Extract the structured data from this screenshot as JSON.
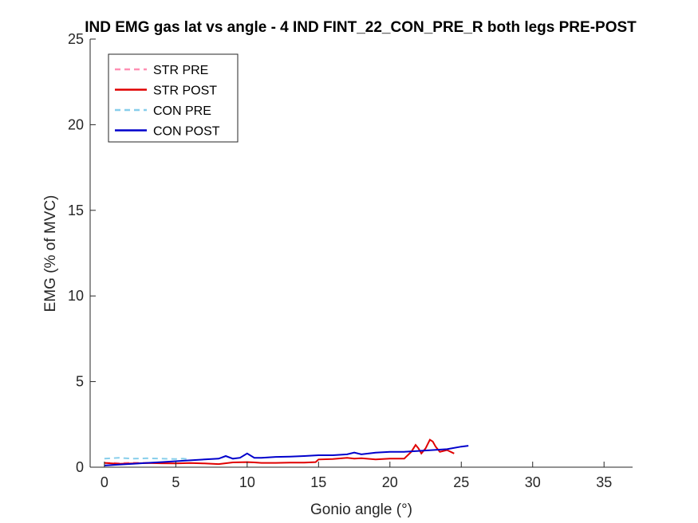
{
  "chart_data": {
    "type": "line",
    "title": "IND EMG gas lat vs angle - 4 IND FINT_22_CON_PRE_R both legs PRE-POST",
    "xlabel": "Gonio angle (°)",
    "ylabel": "EMG (% of MVC)",
    "xlim": [
      -1,
      37
    ],
    "ylim": [
      0,
      25
    ],
    "xticks": [
      0,
      5,
      10,
      15,
      20,
      25,
      30,
      35
    ],
    "yticks": [
      0,
      5,
      10,
      15,
      20,
      25
    ],
    "grid": false,
    "legend_position": "top-left",
    "series": [
      {
        "name": "STR PRE",
        "color": "#ff8fb3",
        "dash": true,
        "x": [
          0,
          0.5,
          1,
          2,
          3,
          3.5
        ],
        "y": [
          0.25,
          0.26,
          0.24,
          0.27,
          0.25,
          0.26
        ]
      },
      {
        "name": "STR POST",
        "color": "#e00000",
        "dash": false,
        "x": [
          0,
          1,
          2,
          3,
          4,
          5,
          6,
          7,
          8,
          9,
          10,
          10.5,
          11,
          12,
          13,
          14,
          14.8,
          15,
          16,
          17,
          17.5,
          18,
          19,
          20,
          21,
          21.5,
          21.8,
          22,
          22.2,
          22.5,
          22.8,
          23,
          23.2,
          23.5,
          24,
          24.5
        ],
        "y": [
          0.25,
          0.2,
          0.22,
          0.24,
          0.23,
          0.22,
          0.24,
          0.22,
          0.18,
          0.28,
          0.3,
          0.28,
          0.25,
          0.25,
          0.27,
          0.27,
          0.3,
          0.45,
          0.48,
          0.55,
          0.5,
          0.52,
          0.45,
          0.5,
          0.5,
          0.9,
          1.3,
          1.1,
          0.8,
          1.1,
          1.6,
          1.5,
          1.2,
          0.9,
          1.0,
          0.8
        ]
      },
      {
        "name": "CON PRE",
        "color": "#87ceeb",
        "dash": true,
        "x": [
          0,
          1,
          2,
          3,
          4,
          5,
          5.5,
          6
        ],
        "y": [
          0.5,
          0.55,
          0.5,
          0.52,
          0.5,
          0.48,
          0.5,
          0.45
        ]
      },
      {
        "name": "CON POST",
        "color": "#0000cc",
        "dash": false,
        "x": [
          0,
          1,
          2,
          3,
          4,
          5,
          6,
          7,
          8,
          8.5,
          9,
          9.5,
          10,
          10.5,
          11,
          12,
          13,
          14,
          15,
          16,
          17,
          17.5,
          18,
          19,
          20,
          21,
          22,
          23,
          24,
          25,
          25.5
        ],
        "y": [
          0.1,
          0.15,
          0.2,
          0.25,
          0.3,
          0.35,
          0.4,
          0.45,
          0.5,
          0.65,
          0.5,
          0.55,
          0.8,
          0.55,
          0.55,
          0.6,
          0.62,
          0.65,
          0.7,
          0.7,
          0.75,
          0.85,
          0.75,
          0.85,
          0.9,
          0.9,
          0.95,
          1.0,
          1.05,
          1.2,
          1.25
        ]
      }
    ]
  }
}
